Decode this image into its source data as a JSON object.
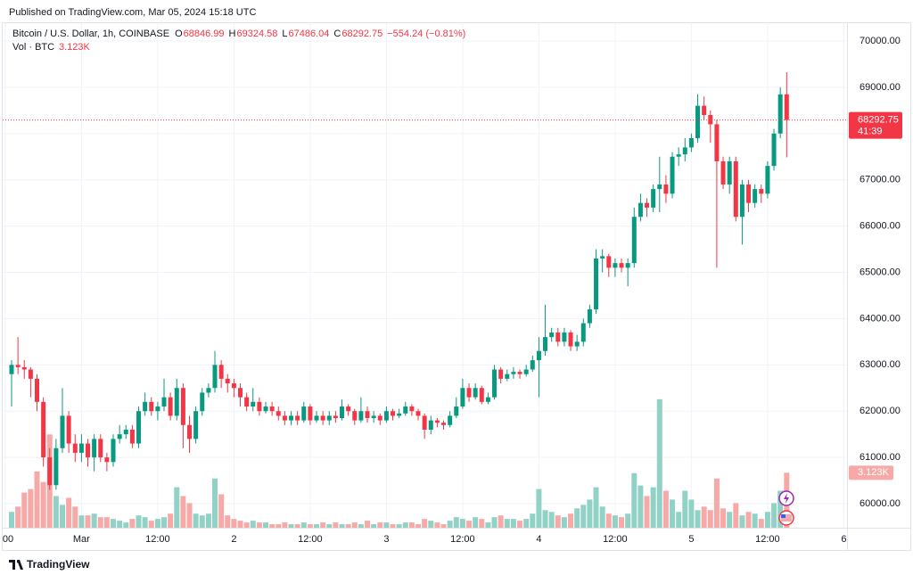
{
  "published": "Published on TradingView.com, Mar 05, 2024 15:18 UTC",
  "brand": "TradingView",
  "chart_data": {
    "type": "candlestick",
    "title": "Bitcoin / U.S. Dollar, 1h, COINBASE",
    "ohlc_labels": [
      "O",
      "H",
      "L",
      "C"
    ],
    "change": "−554.24 (−0.81%)",
    "countdown": "41:39",
    "volume_name": "Vol · BTC",
    "volume_last_label": "3.123K",
    "up_color": "#089981",
    "down_color": "#f23645",
    "up_volume_color": "#92d2c6",
    "down_volume_color": "#f7a9a8",
    "grid": true,
    "ylim": [
      59480,
      70405
    ],
    "yticks": [
      {
        "value": 60000,
        "label": "60000.00"
      },
      {
        "value": 61000,
        "label": "61000.00"
      },
      {
        "value": 62000,
        "label": "62000.00"
      },
      {
        "value": 63000,
        "label": "63000.00"
      },
      {
        "value": 64000,
        "label": "64000.00"
      },
      {
        "value": 65000,
        "label": "65000.00"
      },
      {
        "value": 66000,
        "label": "66000.00"
      },
      {
        "value": 67000,
        "label": "67000.00"
      },
      {
        "value": 68000,
        "label": "68000.00"
      },
      {
        "value": 69000,
        "label": "69000.00"
      },
      {
        "value": 70000,
        "label": "70000.00"
      }
    ],
    "xlim": [
      -1.825,
      130.8
    ],
    "xticks": [
      {
        "value": -1,
        "label": "00"
      },
      {
        "value": 11,
        "label": "Mar"
      },
      {
        "value": 23,
        "label": "12:00"
      },
      {
        "value": 35,
        "label": "2"
      },
      {
        "value": 47,
        "label": "12:00"
      },
      {
        "value": 59,
        "label": "3"
      },
      {
        "value": 71,
        "label": "12:00"
      },
      {
        "value": 83,
        "label": "4"
      },
      {
        "value": 95,
        "label": "12:00"
      },
      {
        "value": 107,
        "label": "5"
      },
      {
        "value": 119,
        "label": "12:00"
      },
      {
        "value": 131,
        "label": "6"
      }
    ],
    "vlim": [
      0,
      8
    ],
    "open": [
      62800,
      63000,
      62950,
      62900,
      62700,
      62200,
      61000,
      60400,
      61200,
      61900,
      61300,
      61100,
      61300,
      61000,
      61400,
      61000,
      60900,
      61400,
      61500,
      61600,
      61300,
      62000,
      62200,
      62000,
      62100,
      62300,
      61900,
      62500,
      61700,
      61400,
      62000,
      62400,
      62500,
      63000,
      62700,
      62600,
      62500,
      62300,
      62100,
      62200,
      62000,
      62100,
      62000,
      61900,
      61800,
      61900,
      61800,
      62100,
      61800,
      61900,
      61800,
      61900,
      61850,
      62100,
      62000,
      61800,
      62000,
      61850,
      61900,
      61800,
      62000,
      61900,
      61950,
      62100,
      62000,
      61900,
      61600,
      61800,
      61750,
      61700,
      61900,
      62100,
      62500,
      62300,
      62500,
      62200,
      62300,
      62900,
      62700,
      62800,
      62850,
      62800,
      62900,
      63100,
      63300,
      63600,
      63700,
      63500,
      63700,
      63400,
      63500,
      63900,
      64200,
      65300,
      65350,
      65100,
      65200,
      65100,
      65200,
      66200,
      66500,
      66400,
      66800,
      66900,
      66700,
      67500,
      67550,
      67700,
      67900,
      68600,
      68400,
      68200,
      67400,
      66900,
      67400,
      66200,
      66900,
      66500,
      66800,
      66700,
      67300,
      68000,
      68846.99
    ],
    "high": [
      63100,
      63600,
      63100,
      62950,
      62800,
      62300,
      61200,
      61400,
      62500,
      62000,
      61500,
      61500,
      61400,
      61500,
      61500,
      61100,
      61500,
      61700,
      61700,
      61700,
      62100,
      62400,
      62300,
      62200,
      62700,
      62400,
      62700,
      62600,
      61900,
      62100,
      62500,
      62600,
      63300,
      63100,
      62800,
      62700,
      62600,
      62400,
      62500,
      62300,
      62200,
      62200,
      62100,
      62000,
      62000,
      62000,
      62200,
      62150,
      62000,
      62000,
      62000,
      62000,
      62250,
      62150,
      62050,
      62300,
      62100,
      62000,
      61950,
      62100,
      62050,
      62050,
      62200,
      62150,
      62050,
      61950,
      61900,
      61850,
      61800,
      62000,
      62300,
      62700,
      62600,
      62600,
      62550,
      62400,
      63000,
      62950,
      62900,
      62950,
      62900,
      63000,
      63200,
      63600,
      64300,
      63800,
      63800,
      63800,
      63750,
      63650,
      64000,
      64300,
      65500,
      65500,
      65400,
      65300,
      65300,
      65300,
      66400,
      66700,
      66600,
      66900,
      67500,
      67100,
      67600,
      67700,
      67900,
      68000,
      68850,
      68800,
      68500,
      68300,
      67500,
      67500,
      67500,
      67000,
      67000,
      66900,
      66900,
      67400,
      68100,
      69000,
      69324.58
    ],
    "low": [
      62100,
      62800,
      62700,
      62300,
      62000,
      60800,
      60300,
      60300,
      61100,
      61100,
      60900,
      60900,
      60800,
      60700,
      60900,
      60700,
      60800,
      61300,
      61400,
      61200,
      61200,
      61900,
      61900,
      61800,
      62000,
      61800,
      61800,
      61200,
      61100,
      61300,
      61900,
      62300,
      62400,
      62500,
      62400,
      62300,
      62100,
      62000,
      62000,
      61900,
      61950,
      61900,
      61800,
      61700,
      61700,
      61700,
      61750,
      61700,
      61750,
      61700,
      61700,
      61750,
      61800,
      61900,
      61700,
      61750,
      61750,
      61750,
      61700,
      61750,
      61800,
      61850,
      61900,
      61900,
      61800,
      61400,
      61500,
      61650,
      61600,
      61650,
      61850,
      62050,
      62200,
      62250,
      62150,
      62150,
      62250,
      62600,
      62650,
      62700,
      62700,
      62750,
      62850,
      62300,
      63200,
      63500,
      63400,
      63400,
      63300,
      63300,
      63400,
      63800,
      64100,
      65000,
      64900,
      64900,
      65000,
      64700,
      65100,
      66100,
      66200,
      66300,
      66300,
      66500,
      66600,
      67300,
      67400,
      67600,
      67800,
      68300,
      67800,
      65100,
      66800,
      66700,
      66100,
      65600,
      66300,
      66400,
      66500,
      66600,
      67200,
      67900,
      67486.04
    ],
    "close": [
      63000,
      62950,
      62900,
      62700,
      62200,
      61000,
      60400,
      61200,
      61900,
      61300,
      61100,
      61300,
      61000,
      61400,
      61000,
      60900,
      61400,
      61500,
      61600,
      61300,
      62000,
      62200,
      62000,
      62100,
      62300,
      61900,
      62500,
      61700,
      61400,
      62000,
      62400,
      62500,
      63000,
      62700,
      62600,
      62500,
      62300,
      62100,
      62200,
      62000,
      62100,
      62000,
      61900,
      61800,
      61900,
      61800,
      62100,
      61800,
      61900,
      61800,
      61900,
      61850,
      62100,
      62000,
      61800,
      62000,
      61850,
      61900,
      61800,
      62000,
      61900,
      61950,
      62100,
      62000,
      61900,
      61600,
      61800,
      61750,
      61700,
      61900,
      62100,
      62500,
      62300,
      62500,
      62200,
      62300,
      62900,
      62700,
      62800,
      62850,
      62800,
      62900,
      63100,
      63300,
      63600,
      63700,
      63500,
      63700,
      63400,
      63500,
      63900,
      64200,
      65300,
      65350,
      65100,
      65200,
      65100,
      65200,
      66200,
      66500,
      66400,
      66800,
      66900,
      66700,
      67500,
      67550,
      67700,
      67900,
      68600,
      68400,
      68200,
      67400,
      66900,
      67400,
      66200,
      66900,
      66500,
      66800,
      66700,
      67300,
      68000,
      68846.99,
      68292.75
    ],
    "volume": [
      0.9,
      1.2,
      2.0,
      2.2,
      3.2,
      2.6,
      5.3,
      1.8,
      1.3,
      1.7,
      1.2,
      0.7,
      0.7,
      0.8,
      0.6,
      0.6,
      0.5,
      0.4,
      0.3,
      0.5,
      0.7,
      0.6,
      0.4,
      0.5,
      0.6,
      0.8,
      2.3,
      1.8,
      1.4,
      0.8,
      0.7,
      0.8,
      2.8,
      1.9,
      0.7,
      0.5,
      0.4,
      0.3,
      0.4,
      0.3,
      0.3,
      0.2,
      0.2,
      0.3,
      0.2,
      0.2,
      0.3,
      0.2,
      0.2,
      0.3,
      0.2,
      0.3,
      0.2,
      0.2,
      0.3,
      0.2,
      0.4,
      0.2,
      0.3,
      0.3,
      0.2,
      0.2,
      0.3,
      0.3,
      0.2,
      0.5,
      0.4,
      0.3,
      0.2,
      0.4,
      0.6,
      0.5,
      0.4,
      0.6,
      0.5,
      0.3,
      0.6,
      0.7,
      0.5,
      0.5,
      0.4,
      0.5,
      0.8,
      2.2,
      1.0,
      0.9,
      0.7,
      0.6,
      0.8,
      1.1,
      1.3,
      1.6,
      2.3,
      1.2,
      0.8,
      0.7,
      0.6,
      0.8,
      3.1,
      2.4,
      1.8,
      2.3,
      7.3,
      2.1,
      1.6,
      0.9,
      2.1,
      1.6,
      1.0,
      1.2,
      1.0,
      2.8,
      1.1,
      0.9,
      1.4,
      0.7,
      0.9,
      0.8,
      0.5,
      0.9,
      1.4,
      2.1,
      3.123
    ]
  }
}
